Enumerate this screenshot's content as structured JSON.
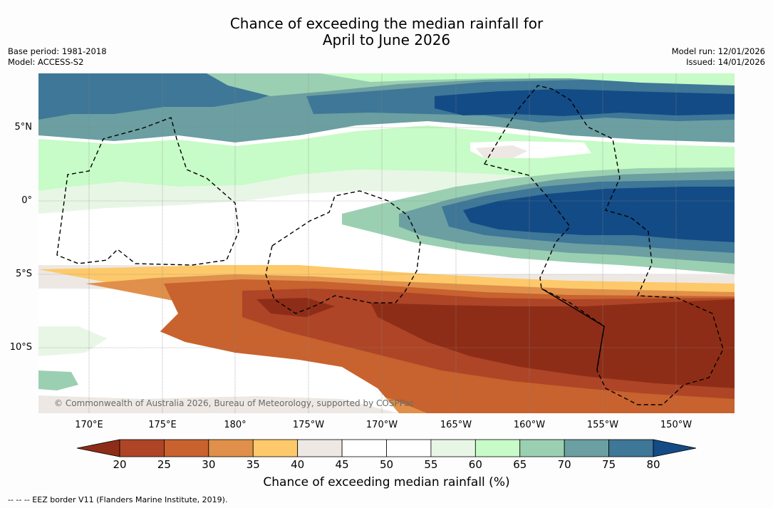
{
  "title": {
    "line1": "Chance of exceeding the median rainfall for",
    "line2": "April to June 2026"
  },
  "meta": {
    "base_period": "Base period: 1981-2018",
    "model": "Model: ACCESS-S2",
    "model_run": "Model run: 12/01/2026",
    "issued": "Issued: 14/01/2026"
  },
  "axes": {
    "lat_labels": [
      "5°N",
      "0°",
      "5°S",
      "10°S"
    ],
    "lon_labels": [
      "170°E",
      "175°E",
      "180°",
      "175°W",
      "170°W",
      "165°W",
      "160°W",
      "155°W",
      "150°W"
    ]
  },
  "colorbar": {
    "ticks": [
      "20",
      "25",
      "30",
      "35",
      "40",
      "45",
      "50",
      "55",
      "60",
      "65",
      "70",
      "75",
      "80"
    ],
    "colors": [
      "#8e2d17",
      "#ae4526",
      "#c8622e",
      "#e0904a",
      "#fdc96a",
      "#ede8e3",
      "#ffffff",
      "#ffffff",
      "#e8f6e6",
      "#c7fbc7",
      "#9bcfb2",
      "#6b9fa1",
      "#3e7797",
      "#134b86",
      "#8e2d17"
    ],
    "label": "Chance of exceeding median rainfall (%)"
  },
  "credit": "© Commonwealth of Australia 2026, Bureau of Meteorology, supported by COSPPac",
  "footer": "--  --  -- EEZ border V11 (Flanders Marine Institute, 2019).",
  "palette": {
    "c20": "#8e2d17",
    "c25": "#ae4526",
    "c30": "#c8622e",
    "c35": "#e0904a",
    "c40": "#fdc96a",
    "c45": "#ede8e3",
    "c55": "#e8f6e6",
    "c60": "#c7fbc7",
    "c65": "#9bcfb2",
    "c70": "#6b9fa1",
    "c75": "#3e7797",
    "c80": "#134b86"
  }
}
